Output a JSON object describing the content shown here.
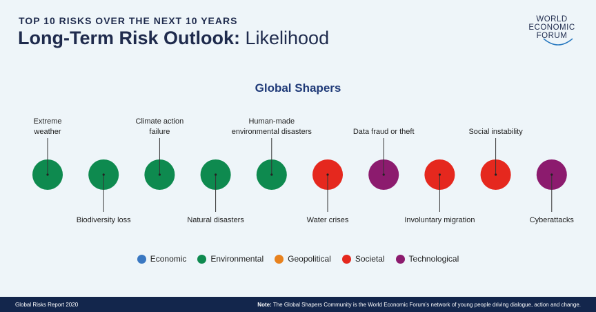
{
  "header": {
    "supertitle": "TOP 10 RISKS OVER THE NEXT 10 YEARS",
    "title_bold": "Long-Term Risk Outlook:",
    "title_light": " Likelihood"
  },
  "logo": {
    "line1": "WORLD",
    "line2": "ECONOMIC",
    "line3": "FORUM"
  },
  "subtitle": "Global Shapers",
  "colors": {
    "economic": "#3a78c2",
    "environmental": "#0e8a4f",
    "geopolitical": "#e8821e",
    "societal": "#e5281e",
    "technological": "#8c1b6e"
  },
  "risks": [
    {
      "rank": 1,
      "label_lines": [
        "Extreme",
        "weather"
      ],
      "category": "environmental",
      "label_pos": "top"
    },
    {
      "rank": 2,
      "label_lines": [
        "Biodiversity loss"
      ],
      "category": "environmental",
      "label_pos": "bottom"
    },
    {
      "rank": 3,
      "label_lines": [
        "Climate action",
        "failure"
      ],
      "category": "environmental",
      "label_pos": "top"
    },
    {
      "rank": 4,
      "label_lines": [
        "Natural disasters"
      ],
      "category": "environmental",
      "label_pos": "bottom"
    },
    {
      "rank": 5,
      "label_lines": [
        "Human-made",
        "environmental disasters"
      ],
      "category": "environmental",
      "label_pos": "top"
    },
    {
      "rank": 6,
      "label_lines": [
        "Water crises"
      ],
      "category": "societal",
      "label_pos": "bottom"
    },
    {
      "rank": 7,
      "label_lines": [
        "Data fraud or theft"
      ],
      "category": "technological",
      "label_pos": "top"
    },
    {
      "rank": 8,
      "label_lines": [
        "Involuntary migration"
      ],
      "category": "societal",
      "label_pos": "bottom"
    },
    {
      "rank": 9,
      "label_lines": [
        "Social instability"
      ],
      "category": "societal",
      "label_pos": "top"
    },
    {
      "rank": 10,
      "label_lines": [
        "Cyberattacks"
      ],
      "category": "technological",
      "label_pos": "bottom"
    }
  ],
  "legend": [
    {
      "key": "economic",
      "label": "Economic"
    },
    {
      "key": "environmental",
      "label": "Environmental"
    },
    {
      "key": "geopolitical",
      "label": "Geopolitical"
    },
    {
      "key": "societal",
      "label": "Societal"
    },
    {
      "key": "technological",
      "label": "Technological"
    }
  ],
  "footer": {
    "source": "Global Risks Report 2020",
    "note_label": "Note:",
    "note_text": " The Global Shapers Community is the World Economic Forum’s network of young people driving dialogue, action and change."
  }
}
